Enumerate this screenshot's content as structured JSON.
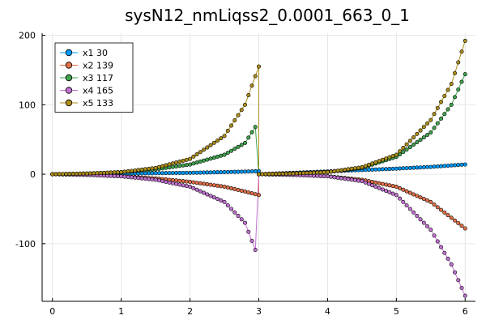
{
  "chart_data": {
    "type": "line",
    "title": "sysN12_nmLiqss2_0.0001_663_0_1",
    "xlabel": "",
    "ylabel": "",
    "xlim": [
      -0.15,
      6.15
    ],
    "ylim": [
      -183,
      203
    ],
    "xticks": [
      0,
      1,
      2,
      3,
      4,
      5,
      6
    ],
    "xtick_labels": [
      "0",
      "1",
      "2",
      "3",
      "4",
      "5",
      "6"
    ],
    "yticks": [
      -100,
      0,
      100,
      200
    ],
    "ytick_labels": [
      "-100",
      "0",
      "100",
      "200"
    ],
    "grid": true,
    "legend_position": "top-left",
    "series": [
      {
        "name": "x1 30",
        "color": "#009AFA",
        "x": [
          0,
          0.5,
          1,
          1.5,
          2,
          2.5,
          2.9,
          3.0,
          3.0,
          3.5,
          4,
          4.5,
          5,
          5.5,
          6
        ],
        "y": [
          0,
          0.5,
          1,
          1.5,
          2,
          3,
          4,
          4.5,
          0,
          2,
          4,
          6,
          8,
          10.5,
          14
        ]
      },
      {
        "name": "x2 139",
        "color": "#E36F47",
        "x": [
          0,
          0.5,
          1,
          1.5,
          2,
          2.5,
          2.8,
          3.0,
          3.0,
          3.5,
          4,
          4.5,
          5,
          5.5,
          6
        ],
        "y": [
          0,
          -1,
          -3,
          -6,
          -11,
          -18,
          -25,
          -30,
          0,
          -1,
          -3,
          -8,
          -18,
          -40,
          -78
        ]
      },
      {
        "name": "x3 117",
        "color": "#3EA44E",
        "x": [
          0,
          0.5,
          1,
          1.5,
          2,
          2.5,
          2.8,
          2.95,
          3.0,
          3.5,
          4,
          4.5,
          5,
          5.5,
          5.8,
          6
        ],
        "y": [
          0,
          1,
          3,
          7,
          14,
          28,
          45,
          68,
          0,
          1,
          3,
          9,
          25,
          60,
          100,
          144
        ]
      },
      {
        "name": "x4 165",
        "color": "#C271D2",
        "x": [
          0,
          0.5,
          1,
          1.5,
          2,
          2.5,
          2.8,
          2.95,
          3.0,
          3.5,
          4,
          4.5,
          5,
          5.5,
          5.8,
          6
        ],
        "y": [
          0,
          -1,
          -3,
          -8,
          -18,
          -40,
          -70,
          -109,
          0,
          -1,
          -3,
          -10,
          -30,
          -80,
          -130,
          -175
        ]
      },
      {
        "name": "x5 133",
        "color": "#AC8D18",
        "x": [
          0,
          0.5,
          1,
          1.5,
          2,
          2.5,
          2.8,
          3.0,
          3.0,
          3.5,
          4,
          4.5,
          5,
          5.5,
          5.8,
          6
        ],
        "y": [
          0,
          1,
          3,
          9,
          22,
          55,
          100,
          155,
          0,
          1,
          3,
          10,
          28,
          78,
          130,
          192
        ]
      }
    ]
  }
}
